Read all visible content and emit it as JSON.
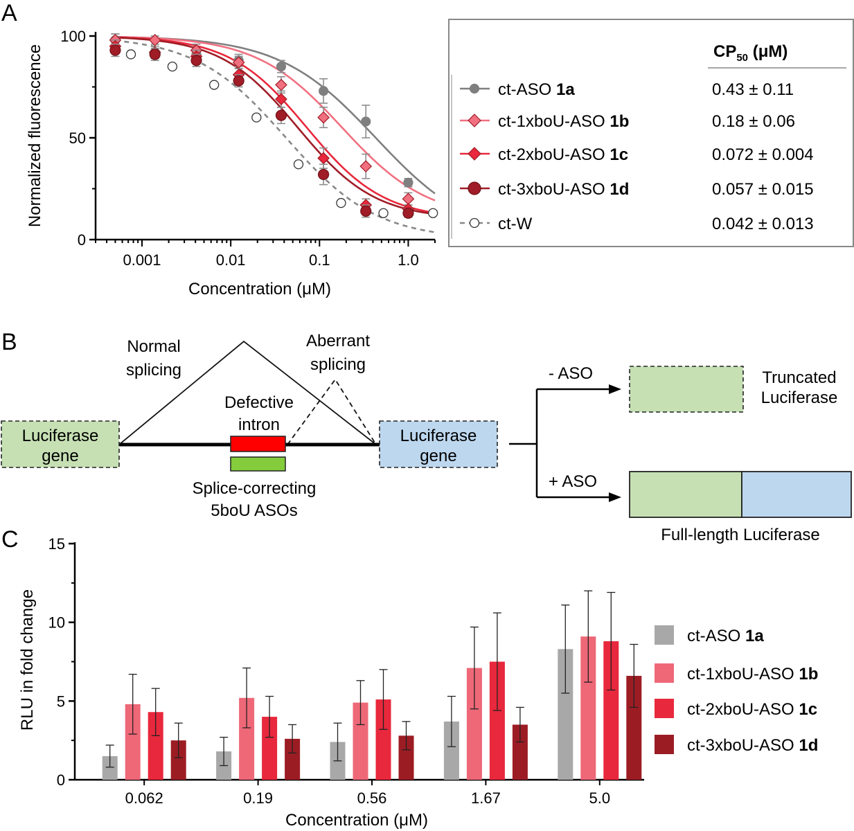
{
  "panel_letters": {
    "a": "A",
    "b": "B",
    "c": "C"
  },
  "colors": {
    "ct_ASO_1a": "#7f7f7f",
    "ct_1xboU_1b": "#f07080",
    "ct_2xboU_1c": "#e8283c",
    "ct_3xboU_1d": "#a01c26",
    "ct_W": "#8c8c8c",
    "bar_1a": "#a8a8a8",
    "bar_1b": "#ee6878",
    "bar_1c": "#e8283c",
    "bar_1d": "#9c1c24",
    "green_box": "#c6e0b4",
    "blue_box": "#bdd7ee",
    "intron_red": "#ff0000",
    "aso_green": "#84cc3c"
  },
  "panelA": {
    "legend": {
      "header_label": "CP",
      "header_sub": "50",
      "header_unit": " (μM)",
      "rows": [
        {
          "name": "ct-ASO ",
          "bold": "1a",
          "value": "0.43 ± 0.11",
          "marker": "circle-filled-icon"
        },
        {
          "name": "ct-1xboU-ASO ",
          "bold": "1b",
          "value": "0.18 ± 0.06",
          "marker": "diamond-icon"
        },
        {
          "name": "ct-2xboU-ASO ",
          "bold": "1c",
          "value": "0.072 ± 0.004",
          "marker": "diamond-icon"
        },
        {
          "name": "ct-3xboU-ASO ",
          "bold": "1d",
          "value": "0.057 ± 0.015",
          "marker": "circle-filled-icon"
        },
        {
          "name": "ct-W",
          "bold": "",
          "value": "0.042 ± 0.013",
          "marker": "circle-open-icon"
        }
      ]
    }
  },
  "panelB": {
    "normal_line1": "Normal",
    "normal_line2": "splicing",
    "aberrant_line1": "Aberrant",
    "aberrant_line2": "splicing",
    "defective_line1": "Defective",
    "defective_line2": "intron",
    "luc_left_line1": "Luciferase",
    "luc_left_line2": "gene",
    "luc_right_line1": "Luciferase",
    "luc_right_line2": "gene",
    "splice_line1": "Splice-correcting",
    "splice_line2": "5boU ASOs",
    "minus_aso": "- ASO",
    "plus_aso": "+ ASO",
    "truncated_line1": "Truncated",
    "truncated_line2": "Luciferase",
    "full_length": "Full-length Luciferase"
  },
  "chart_data": [
    {
      "type": "scatter",
      "panel": "A",
      "xlabel": "Concentration (μM)",
      "ylabel": "Normalized fluorescence",
      "xscale": "log",
      "xlim": [
        0.0003,
        2.0
      ],
      "ylim": [
        0,
        100
      ],
      "xticks": [
        0.001,
        0.01,
        0.1,
        1.0
      ],
      "xtick_labels": [
        "0.001",
        "0.01",
        "0.1",
        "1.0"
      ],
      "yticks": [
        0,
        50,
        100
      ],
      "ytick_labels": [
        "0",
        "50",
        "100"
      ],
      "legend_position": "right (boxed table)",
      "series": [
        {
          "name": "ct-ASO 1a",
          "marker": "circle",
          "fit": "solid",
          "fit_cp50": 0.43,
          "fit_top": 100,
          "fit_bottom": 0,
          "fit_hill": 0.8,
          "x": [
            0.0005,
            0.0014,
            0.0041,
            0.0123,
            0.037,
            0.111,
            0.333,
            1.0
          ],
          "y": [
            98,
            92,
            91,
            88,
            85,
            73,
            58,
            28
          ],
          "err": [
            3,
            3,
            3,
            3,
            3,
            6,
            8,
            2
          ]
        },
        {
          "name": "ct-1xboU-ASO 1b",
          "marker": "diamond",
          "fit": "solid",
          "fit_cp50": 0.18,
          "fit_top": 100,
          "fit_bottom": 10,
          "fit_hill": 0.9,
          "x": [
            0.0005,
            0.0014,
            0.0041,
            0.0123,
            0.037,
            0.111,
            0.333,
            1.0
          ],
          "y": [
            98,
            98,
            93,
            87,
            76,
            60,
            36,
            20
          ],
          "err": [
            3,
            2,
            3,
            3,
            4,
            5,
            6,
            3
          ]
        },
        {
          "name": "ct-2xboU-ASO 1c",
          "marker": "diamond",
          "fit": "solid",
          "fit_cp50": 0.072,
          "fit_top": 100,
          "fit_bottom": 10,
          "fit_hill": 1.0,
          "x": [
            0.0005,
            0.0014,
            0.0041,
            0.0123,
            0.037,
            0.111,
            0.333,
            1.0
          ],
          "y": [
            95,
            92,
            90,
            81,
            69,
            40,
            17,
            15
          ],
          "err": [
            3,
            3,
            3,
            3,
            4,
            5,
            3,
            2
          ]
        },
        {
          "name": "ct-3xboU-ASO 1d",
          "marker": "circle",
          "fit": "solid",
          "fit_cp50": 0.057,
          "fit_top": 100,
          "fit_bottom": 10,
          "fit_hill": 1.0,
          "x": [
            0.0005,
            0.0014,
            0.0041,
            0.0123,
            0.037,
            0.111,
            0.333,
            1.0
          ],
          "y": [
            93,
            91,
            88,
            78,
            61,
            32,
            14,
            13
          ],
          "err": [
            3,
            3,
            3,
            3,
            4,
            5,
            3,
            2
          ]
        },
        {
          "name": "ct-W",
          "marker": "open-circle",
          "fit": "dashed",
          "fit_cp50": 0.042,
          "fit_top": 100,
          "fit_bottom": 0,
          "fit_hill": 0.85,
          "x": [
            0.00075,
            0.0022,
            0.0065,
            0.0195,
            0.058,
            0.175,
            0.525,
            1.9
          ],
          "y": [
            91,
            85,
            76,
            60,
            37,
            18,
            13,
            13
          ],
          "err": [
            0,
            0,
            0,
            0,
            0,
            0,
            0,
            0
          ]
        }
      ]
    },
    {
      "type": "bar",
      "panel": "C",
      "xlabel": "Concentration (μM)",
      "ylabel": "RLU in fold change",
      "ylim": [
        0,
        15
      ],
      "yticks": [
        0,
        5,
        10,
        15
      ],
      "ytick_labels": [
        "0",
        "5",
        "10",
        "15"
      ],
      "categories": [
        "0.062",
        "0.19",
        "0.56",
        "1.67",
        "5.0"
      ],
      "legend_position": "right",
      "series": [
        {
          "name": "ct-ASO ",
          "bold": "1a",
          "values": [
            1.5,
            1.8,
            2.4,
            3.7,
            8.3
          ],
          "err": [
            0.7,
            0.9,
            1.2,
            1.6,
            2.8
          ]
        },
        {
          "name": "ct-1xboU-ASO ",
          "bold": "1b",
          "values": [
            4.8,
            5.2,
            4.9,
            7.1,
            9.1
          ],
          "err": [
            1.9,
            1.9,
            1.4,
            2.6,
            2.9
          ]
        },
        {
          "name": "ct-2xboU-ASO ",
          "bold": "1c",
          "values": [
            4.3,
            4.0,
            5.1,
            7.5,
            8.8
          ],
          "err": [
            1.5,
            1.3,
            1.9,
            3.1,
            3.1
          ]
        },
        {
          "name": "ct-3xboU-ASO ",
          "bold": "1d",
          "values": [
            2.5,
            2.6,
            2.8,
            3.5,
            6.6
          ],
          "err": [
            1.1,
            0.9,
            0.9,
            1.1,
            2.0
          ]
        }
      ]
    }
  ]
}
